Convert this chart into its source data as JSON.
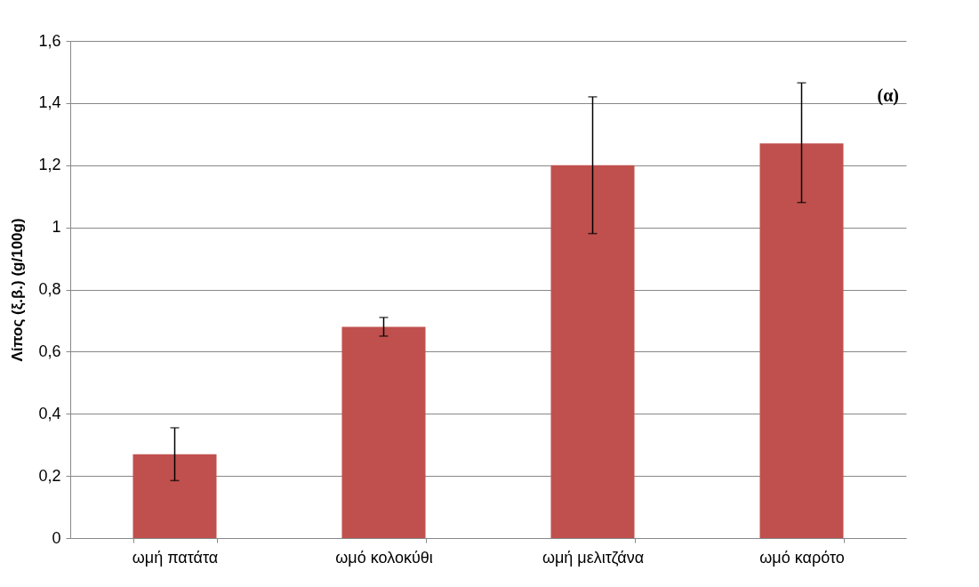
{
  "chart_data": {
    "type": "bar",
    "ylabel": "Λίπος (ξ.β.) (g/100g)",
    "categories": [
      "ωμή πατάτα",
      "ωμό κολοκύθι",
      "ωμή μελιτζάνα",
      "ωμό καρότο"
    ],
    "values": [
      0.27,
      0.68,
      1.2,
      1.27
    ],
    "errors": [
      0.085,
      0.03,
      0.22,
      [
        1.08,
        1.465
      ]
    ],
    "color": "#c0504d",
    "ylim": [
      0,
      1.6
    ],
    "yticks": [
      0,
      {
        "value": 0.2,
        "label": "0,2"
      },
      {
        "value": 0.4,
        "label": "0,4"
      },
      {
        "value": 0.6,
        "label": "0,6"
      },
      {
        "value": 0.8,
        "label": "0,8"
      },
      1,
      {
        "value": 1.2,
        "label": "1,2"
      },
      {
        "value": 1.4,
        "label": "1,4"
      },
      {
        "value": 1.6,
        "label": "1,6"
      }
    ],
    "grid": "y",
    "annotations": [
      "(α)"
    ]
  }
}
